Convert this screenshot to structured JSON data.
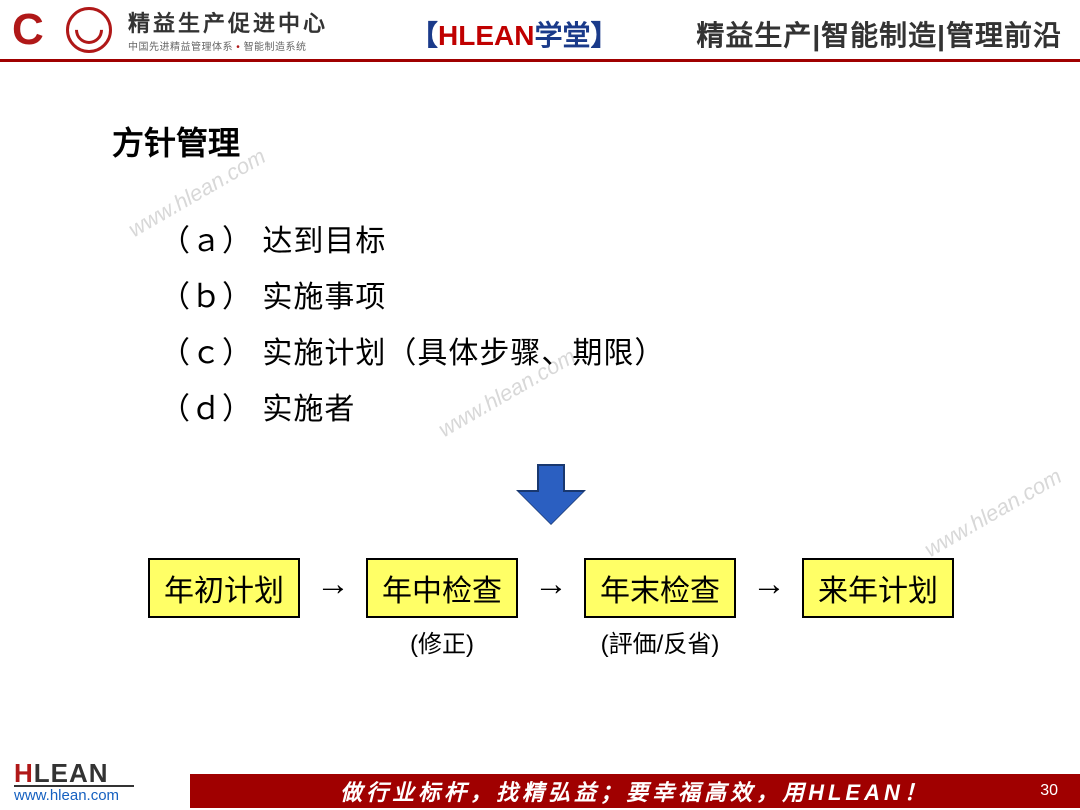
{
  "header": {
    "logo_title": "精益生产促进中心",
    "logo_sub_a": "中国先进精益管理体系",
    "logo_sub_b": "智能制造系统",
    "center_bracket_l": "【",
    "center_red": "HLEAN",
    "center_blue": "学堂",
    "center_bracket_r": "】",
    "right": "精益生产|智能制造|管理前沿"
  },
  "slide": {
    "title": "方针管理",
    "items": [
      "（ａ）  达到目标",
      "（ｂ）  实施事项",
      "（ｃ）  实施计划（具体步骤、期限）",
      "（ｄ）  实施者"
    ]
  },
  "flow": {
    "boxes": [
      "年初计划",
      "年中检查",
      "年末检查",
      "来年计划"
    ],
    "subs": [
      "",
      "(修正)",
      "(評価/反省)",
      ""
    ],
    "arrow": "→",
    "box_bg": "#ffff66",
    "box_border": "#000000"
  },
  "down_arrow": {
    "fill": "#2b5fc1",
    "stroke": "#19386f"
  },
  "footer": {
    "logo": "HLEAN",
    "url": "www.hlean.com",
    "slogan": "做行业标杆，找精弘益；要幸福高效，用HLEAN！",
    "page": "30",
    "bar_color": "#a00000"
  },
  "watermark": "www.hlean.com",
  "colors": {
    "brand_red": "#b01818",
    "header_rule": "#a00000",
    "text": "#000000"
  }
}
